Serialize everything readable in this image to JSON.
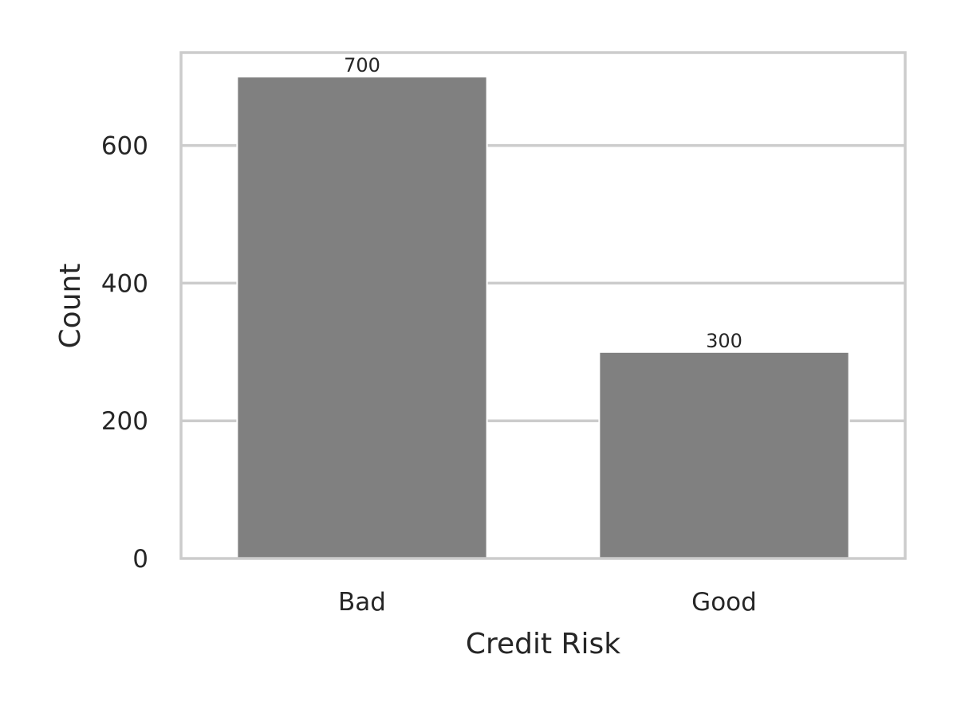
{
  "chart_data": {
    "type": "bar",
    "categories": [
      "Bad",
      "Good"
    ],
    "values": [
      700,
      300
    ],
    "data_labels": [
      "700",
      "300"
    ],
    "title": "",
    "xlabel": "Credit Risk",
    "ylabel": "Count",
    "ylim": [
      0,
      735
    ],
    "yticks": [
      0,
      200,
      400,
      600
    ],
    "ytick_labels": [
      "0",
      "200",
      "400",
      "600"
    ],
    "grid": "horizontal",
    "legend": "none",
    "bar_color": "#808080",
    "grid_color": "#cccccc",
    "frame_color": "#cccccc",
    "text_color": "#262626"
  }
}
